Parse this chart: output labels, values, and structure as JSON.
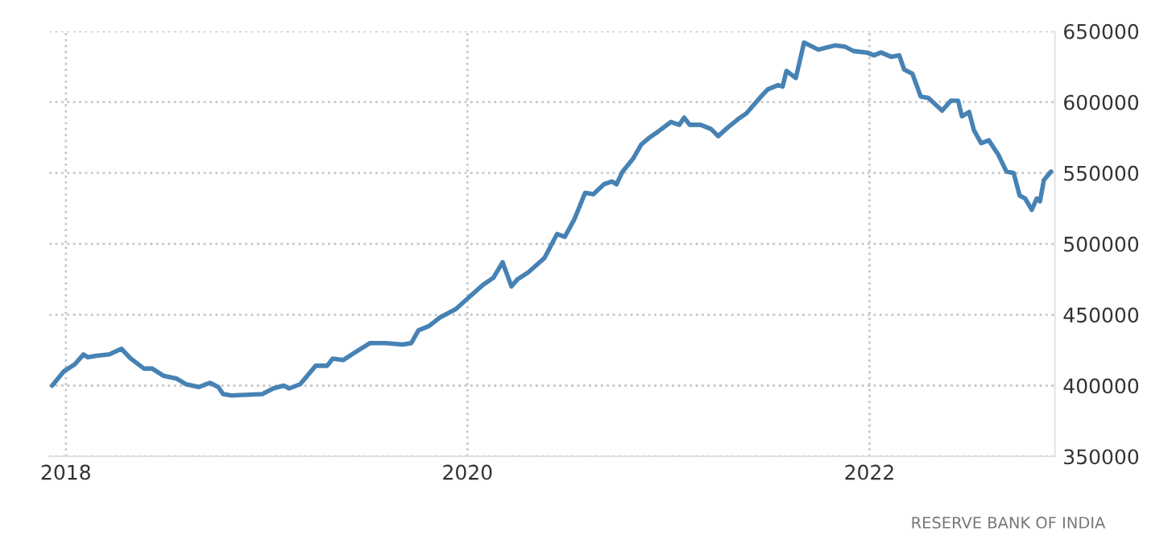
{
  "chart_data": {
    "type": "line",
    "x": [
      "2017-12-07",
      "2017-12-28",
      "2018-01-17",
      "2018-02-02",
      "2018-02-10",
      "2018-02-25",
      "2018-03-21",
      "2018-04-12",
      "2018-04-29",
      "2018-05-23",
      "2018-06-07",
      "2018-06-27",
      "2018-07-21",
      "2018-08-07",
      "2018-08-31",
      "2018-09-20",
      "2018-10-05",
      "2018-10-14",
      "2018-10-29",
      "2018-12-24",
      "2019-01-13",
      "2019-02-01",
      "2019-02-11",
      "2019-03-03",
      "2019-03-31",
      "2019-04-21",
      "2019-05-01",
      "2019-05-20",
      "2019-06-09",
      "2019-07-08",
      "2019-08-06",
      "2019-09-05",
      "2019-09-21",
      "2019-10-04",
      "2019-10-23",
      "2019-11-12",
      "2019-12-11",
      "2019-12-31",
      "2020-01-29",
      "2020-02-17",
      "2020-03-05",
      "2020-03-21",
      "2020-04-01",
      "2020-04-21",
      "2020-05-20",
      "2020-06-12",
      "2020-06-26",
      "2020-07-13",
      "2020-08-02",
      "2020-08-17",
      "2020-09-05",
      "2020-09-20",
      "2020-09-28",
      "2020-10-09",
      "2020-10-28",
      "2020-11-12",
      "2020-11-27",
      "2020-12-12",
      "2021-01-05",
      "2021-01-20",
      "2021-01-29",
      "2021-02-08",
      "2021-02-28",
      "2021-03-19",
      "2021-04-01",
      "2021-04-18",
      "2021-05-07",
      "2021-05-22",
      "2021-06-18",
      "2021-06-30",
      "2021-07-19",
      "2021-07-27",
      "2021-08-03",
      "2021-08-20",
      "2021-09-04",
      "2021-09-30",
      "2021-10-30",
      "2021-11-18",
      "2021-12-03",
      "2021-12-27",
      "2022-01-09",
      "2022-01-22",
      "2022-02-09",
      "2022-02-24",
      "2022-03-05",
      "2022-03-20",
      "2022-04-04",
      "2022-04-18",
      "2022-05-13",
      "2022-05-29",
      "2022-06-11",
      "2022-06-18",
      "2022-07-01",
      "2022-07-10",
      "2022-07-23",
      "2022-08-06",
      "2022-08-23",
      "2022-09-07",
      "2022-09-20",
      "2022-10-01",
      "2022-10-11",
      "2022-10-23",
      "2022-11-01",
      "2022-11-07",
      "2022-11-14",
      "2022-11-27"
    ],
    "series": [
      {
        "color": "#4682b4",
        "values": [
          400000,
          410000,
          415000,
          422000,
          420000,
          421000,
          422000,
          426000,
          419000,
          412000,
          412000,
          407000,
          405000,
          401000,
          399000,
          402000,
          399000,
          394000,
          393000,
          394000,
          398000,
          400000,
          398000,
          401000,
          414000,
          414000,
          419000,
          418000,
          423000,
          430000,
          430000,
          429000,
          430000,
          439000,
          442000,
          448000,
          454000,
          461000,
          471000,
          476000,
          487000,
          470000,
          475000,
          480000,
          490000,
          507000,
          505000,
          517000,
          536000,
          535000,
          542000,
          544000,
          542000,
          551000,
          560000,
          570000,
          575000,
          579000,
          586000,
          584000,
          589000,
          584000,
          584000,
          581000,
          576000,
          582000,
          588000,
          592000,
          604000,
          609000,
          612000,
          611000,
          622000,
          617000,
          642000,
          637000,
          640000,
          639000,
          636000,
          635000,
          633000,
          635000,
          632000,
          633000,
          623000,
          620000,
          604000,
          603000,
          594000,
          601000,
          601000,
          590000,
          593000,
          580000,
          571000,
          573000,
          563000,
          551000,
          550000,
          534000,
          532000,
          524000,
          532000,
          530000,
          545000,
          551000
        ]
      }
    ],
    "xlim": [
      "2017-12-02",
      "2022-12-04"
    ],
    "xticks": [
      "2018",
      "2020",
      "2022"
    ],
    "ylim": [
      350000,
      650000
    ],
    "yticks": [
      350000,
      400000,
      450000,
      500000,
      550000,
      600000,
      650000
    ],
    "grid": true,
    "line_style": "solid",
    "annotations": [
      "RESERVE BANK OF INDIA"
    ]
  }
}
